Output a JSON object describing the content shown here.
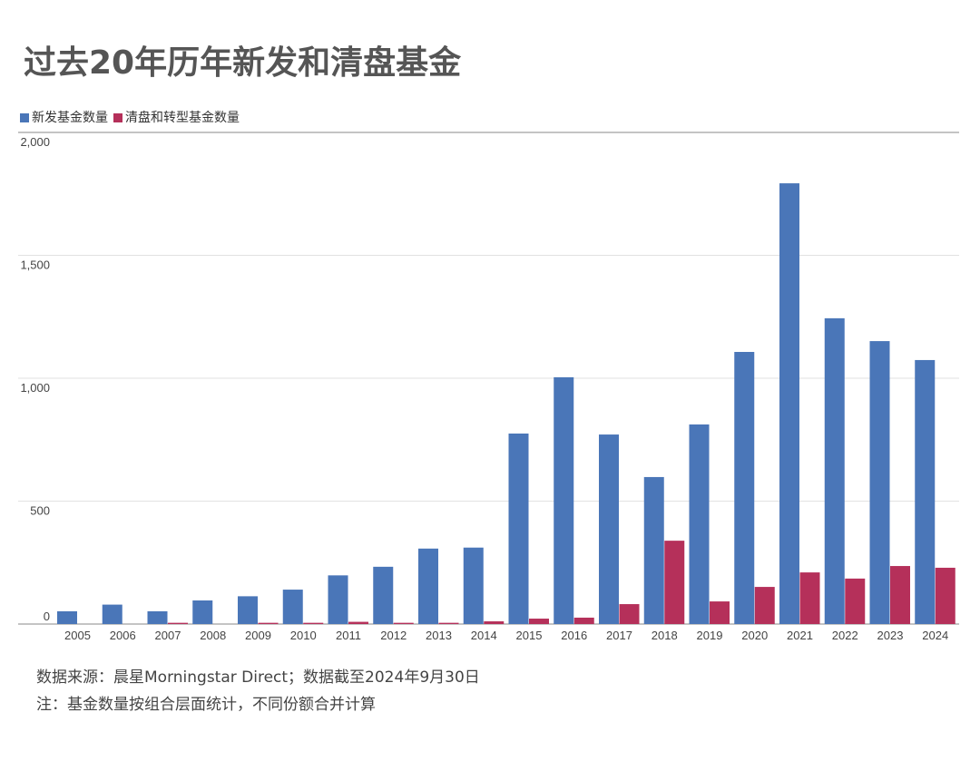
{
  "title": "过去20年历年新发和清盘基金",
  "notes": [
    "数据来源：晨星Morningstar Direct；数据截至2024年9月30日",
    "注：基金数量按组合层面统计，不同份额合并计算"
  ],
  "chart_data": {
    "type": "bar",
    "title": "过去20年历年新发和清盘基金",
    "categories": [
      "2005",
      "2006",
      "2007",
      "2008",
      "2009",
      "2010",
      "2011",
      "2012",
      "2013",
      "2014",
      "2015",
      "2016",
      "2017",
      "2018",
      "2019",
      "2020",
      "2021",
      "2022",
      "2023",
      "2024"
    ],
    "series": [
      {
        "name": "新发基金数量",
        "color": "#4a76b8",
        "values": [
          52,
          79,
          52,
          96,
          113,
          140,
          198,
          233,
          307,
          311,
          775,
          1004,
          771,
          598,
          812,
          1107,
          1793,
          1244,
          1151,
          1074
        ]
      },
      {
        "name": "清盘和转型基金数量",
        "color": "#b5305a",
        "values": [
          0,
          0,
          5,
          0,
          5,
          5,
          9,
          5,
          5,
          11,
          22,
          26,
          81,
          339,
          92,
          151,
          210,
          185,
          236,
          229
        ]
      }
    ],
    "ylim": [
      0,
      2000
    ],
    "yticks": [
      "0",
      "500",
      "1,000",
      "1,500",
      "2,000"
    ],
    "grid": true,
    "legend": "top-left"
  }
}
